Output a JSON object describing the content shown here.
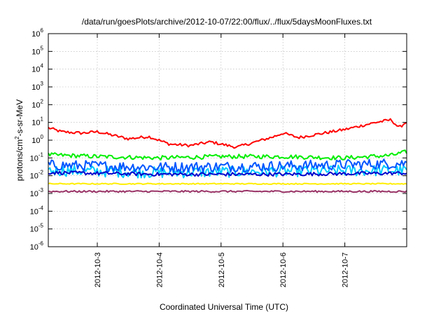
{
  "chart_data": {
    "type": "line",
    "title": "/data/run/goesPlots/archive/2012-10-07/22:00/flux/../flux/5daysMoonFluxes.txt",
    "xlabel": "Coordinated Universal Time (UTC)",
    "ylabel": {
      "pre": "protons/cm",
      "sup": "2",
      "post": "-s-sr-MeV"
    },
    "y_scale": "log",
    "ylim": [
      1e-06,
      1000000.0
    ],
    "xlim": [
      "2012-10-02 05:00",
      "2012-10-08 00:00"
    ],
    "grid": true,
    "legend": "none",
    "y_ticks": [
      {
        "base": "10",
        "exp": "-6",
        "value": 1e-06
      },
      {
        "base": "10",
        "exp": "-5",
        "value": 1e-05
      },
      {
        "base": "10",
        "exp": "-4",
        "value": 0.0001
      },
      {
        "base": "10",
        "exp": "-3",
        "value": 0.001
      },
      {
        "base": "10",
        "exp": "-2",
        "value": 0.01
      },
      {
        "base": "10",
        "exp": "-1",
        "value": 0.1
      },
      {
        "base": "10",
        "exp": "0",
        "value": 1
      },
      {
        "base": "10",
        "exp": "1",
        "value": 10
      },
      {
        "base": "10",
        "exp": "2",
        "value": 100
      },
      {
        "base": "10",
        "exp": "3",
        "value": 1000
      },
      {
        "base": "10",
        "exp": "4",
        "value": 10000
      },
      {
        "base": "10",
        "exp": "5",
        "value": 100000
      },
      {
        "base": "10",
        "exp": "6",
        "value": 1000000
      }
    ],
    "x_ticks": [
      "2012-10-3",
      "2012-10-4",
      "2012-10-5",
      "2012-10-6",
      "2012-10-7"
    ],
    "x_tick_dates": [
      "2012-10-03",
      "2012-10-04",
      "2012-10-05",
      "2012-10-06",
      "2012-10-07"
    ],
    "series": [
      {
        "color": "#ff0000",
        "noise": 0.08,
        "points": [
          [
            "2012-10-02 05:00",
            5
          ],
          [
            "2012-10-02 10:00",
            3
          ],
          [
            "2012-10-02 18:00",
            2.5
          ],
          [
            "2012-10-03 00:00",
            3
          ],
          [
            "2012-10-03 12:00",
            1.2
          ],
          [
            "2012-10-03 20:00",
            1.6
          ],
          [
            "2012-10-04 04:00",
            0.6
          ],
          [
            "2012-10-04 12:00",
            0.5
          ],
          [
            "2012-10-04 20:00",
            0.8
          ],
          [
            "2012-10-05 00:00",
            0.6
          ],
          [
            "2012-10-05 06:00",
            0.4
          ],
          [
            "2012-10-05 12:00",
            0.7
          ],
          [
            "2012-10-05 20:00",
            1.5
          ],
          [
            "2012-10-06 00:00",
            2.5
          ],
          [
            "2012-10-06 06:00",
            1.4
          ],
          [
            "2012-10-06 12:00",
            2.0
          ],
          [
            "2012-10-07 00:00",
            4
          ],
          [
            "2012-10-07 12:00",
            10
          ],
          [
            "2012-10-07 18:00",
            14
          ],
          [
            "2012-10-07 21:00",
            5
          ],
          [
            "2012-10-08 00:00",
            11
          ]
        ]
      },
      {
        "color": "#00ee00",
        "noise": 0.12,
        "points": [
          [
            "2012-10-02 05:00",
            0.15
          ],
          [
            "2012-10-03 00:00",
            0.12
          ],
          [
            "2012-10-04 00:00",
            0.1
          ],
          [
            "2012-10-05 00:00",
            0.12
          ],
          [
            "2012-10-06 00:00",
            0.12
          ],
          [
            "2012-10-07 00:00",
            0.1
          ],
          [
            "2012-10-07 18:00",
            0.14
          ],
          [
            "2012-10-08 00:00",
            0.22
          ]
        ]
      },
      {
        "color": "#00ccff",
        "noise": 0.32,
        "points": [
          [
            "2012-10-02 05:00",
            0.02
          ],
          [
            "2012-10-04 00:00",
            0.015
          ],
          [
            "2012-10-06 00:00",
            0.018
          ],
          [
            "2012-10-08 00:00",
            0.02
          ]
        ]
      },
      {
        "color": "#0055ff",
        "noise": 0.3,
        "points": [
          [
            "2012-10-02 05:00",
            0.04
          ],
          [
            "2012-10-04 00:00",
            0.03
          ],
          [
            "2012-10-06 00:00",
            0.035
          ],
          [
            "2012-10-08 00:00",
            0.05
          ]
        ]
      },
      {
        "color": "#0000cc",
        "noise": 0.1,
        "points": [
          [
            "2012-10-02 05:00",
            0.015
          ],
          [
            "2012-10-04 00:00",
            0.012
          ],
          [
            "2012-10-06 00:00",
            0.012
          ],
          [
            "2012-10-08 00:00",
            0.014
          ]
        ]
      },
      {
        "color": "#ffee00",
        "noise": 0.03,
        "points": [
          [
            "2012-10-02 05:00",
            0.0035
          ],
          [
            "2012-10-08 00:00",
            0.0035
          ]
        ]
      },
      {
        "color": "#993366",
        "noise": 0.05,
        "points": [
          [
            "2012-10-02 05:00",
            0.0013
          ],
          [
            "2012-10-08 00:00",
            0.0013
          ]
        ]
      }
    ]
  }
}
